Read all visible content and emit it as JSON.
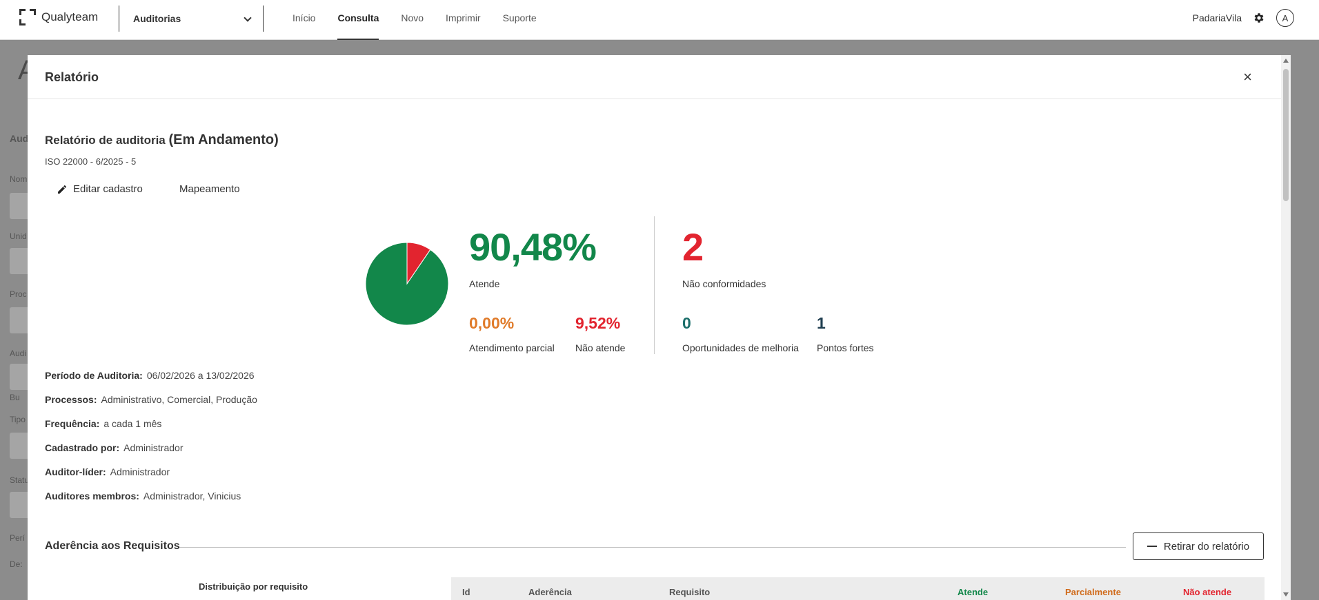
{
  "nav": {
    "logo": "Qualyteam",
    "module": "Auditorias",
    "links": [
      "Início",
      "Consulta",
      "Novo",
      "Imprimir",
      "Suporte"
    ],
    "active_link": "Consulta",
    "company": "PadariaVila",
    "avatar_initial": "A"
  },
  "background": {
    "page_letter": "A",
    "side_labels": [
      "Aud",
      "Nom",
      "Unid",
      "Proc",
      "Audi",
      "Bu",
      "Tipo",
      "Statu",
      "Perí",
      "De:"
    ]
  },
  "modal": {
    "title": "Relatório",
    "close_symbol": "×"
  },
  "report": {
    "title": "Relatório de auditoria",
    "status": "(Em Andamento)",
    "subtitle": "ISO 22000 - 6/2025 - 5",
    "edit_label": "Editar cadastro",
    "mapping_label": "Mapeamento"
  },
  "stats": {
    "atende_pct": "90,48%",
    "atende_label": "Atende",
    "parcial_pct": "0,00%",
    "parcial_label": "Atendimento parcial",
    "nao_atende_pct": "9,52%",
    "nao_atende_label": "Não atende",
    "nc_count": "2",
    "nc_label": "Não conformidades",
    "om_count": "0",
    "om_label": "Oportunidades de melhoria",
    "pf_count": "1",
    "pf_label": "Pontos fortes"
  },
  "chart_data": {
    "type": "pie",
    "categories": [
      "Atende",
      "Atendimento parcial",
      "Não atende"
    ],
    "values": [
      90.48,
      0.0,
      9.52
    ],
    "colors": [
      "#12874a",
      "#e07b2a",
      "#e2242f"
    ]
  },
  "info": [
    {
      "label": "Período de Auditoria:",
      "value": "06/02/2026 a 13/02/2026"
    },
    {
      "label": "Processos:",
      "value": "Administrativo, Comercial, Produção"
    },
    {
      "label": "Frequência:",
      "value": "a cada 1 mês"
    },
    {
      "label": "Cadastrado por:",
      "value": "Administrador"
    },
    {
      "label": "Auditor-líder:",
      "value": "Administrador"
    },
    {
      "label": "Auditores membros:",
      "value": "Administrador, Vinicius"
    }
  ],
  "section": {
    "title": "Aderência aos Requisitos",
    "remove_label": "Retirar do relatório",
    "distribution_title": "Distribuição por requisito",
    "columns": [
      {
        "label": "Id",
        "color": "#555555"
      },
      {
        "label": "Aderência",
        "color": "#555555"
      },
      {
        "label": "Requisito",
        "color": "#555555"
      },
      {
        "label": "Atende",
        "color": "#12874a"
      },
      {
        "label": "Parcialmente",
        "color": "#d06a1a"
      },
      {
        "label": "Não atende",
        "color": "#e2242f"
      }
    ]
  }
}
